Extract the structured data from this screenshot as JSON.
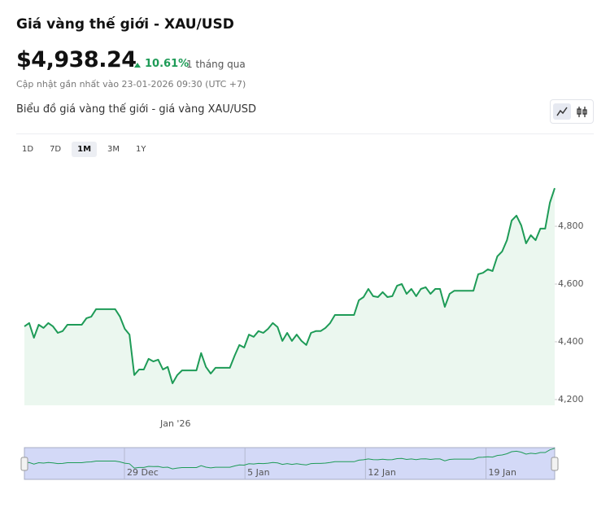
{
  "header": {
    "title": "Giá vàng thế giới - XAU/USD",
    "price": "$4,938.24",
    "change": "10.61%",
    "period": "1 tháng qua",
    "updated": "Cập nhật gần nhất vào 23-01-2026 09:30 (UTC +7)"
  },
  "chart_heading": "Biểu đồ giá vàng thế giới - giá vàng XAU/USD",
  "ranges": [
    "1D",
    "7D",
    "1M",
    "3M",
    "1Y"
  ],
  "active_range": "1M",
  "chart_data": {
    "type": "line",
    "color": "#1e9b57",
    "area_color": "#ebf7ef",
    "categories": [
      null,
      null,
      null,
      null,
      null,
      null,
      null,
      null,
      null,
      null,
      null,
      null,
      null,
      null,
      null,
      null,
      null,
      null,
      null,
      null,
      null,
      null,
      null,
      null,
      null,
      null,
      null,
      null,
      null,
      null,
      null,
      null,
      null,
      null,
      "Jan '26",
      null,
      null,
      null,
      null,
      null,
      null,
      null,
      null,
      null,
      null,
      null,
      null,
      null,
      null,
      null,
      null,
      null,
      null,
      null,
      null,
      null,
      null,
      null,
      null,
      null,
      null,
      null,
      null,
      null,
      null,
      null,
      null,
      null,
      null,
      null,
      null,
      null,
      null,
      null,
      null,
      null,
      null,
      null,
      null,
      null,
      null,
      null,
      null,
      null,
      null,
      null,
      null,
      null,
      null,
      null,
      null,
      null,
      null,
      null,
      null,
      null,
      null,
      null,
      null,
      null,
      null,
      null,
      null,
      null,
      null,
      null,
      null,
      null,
      null,
      null,
      null,
      null
    ],
    "values": [
      4453,
      4465,
      4414,
      4459,
      4448,
      4465,
      4453,
      4431,
      4437,
      4459,
      4459,
      4459,
      4459,
      4482,
      4487,
      4513,
      4513,
      4513,
      4513,
      4513,
      4487,
      4445,
      4425,
      4285,
      4304,
      4304,
      4341,
      4332,
      4338,
      4304,
      4313,
      4256,
      4285,
      4301,
      4301,
      4301,
      4301,
      4361,
      4313,
      4290,
      4310,
      4310,
      4310,
      4310,
      4352,
      4389,
      4380,
      4425,
      4417,
      4437,
      4431,
      4445,
      4465,
      4451,
      4403,
      4431,
      4403,
      4425,
      4403,
      4389,
      4431,
      4437,
      4437,
      4448,
      4465,
      4493,
      4493,
      4493,
      4493,
      4493,
      4544,
      4555,
      4583,
      4558,
      4555,
      4572,
      4555,
      4558,
      4594,
      4600,
      4566,
      4583,
      4558,
      4583,
      4589,
      4566,
      4583,
      4583,
      4521,
      4566,
      4577,
      4577,
      4577,
      4577,
      4577,
      4634,
      4639,
      4651,
      4645,
      4696,
      4713,
      4752,
      4820,
      4837,
      4803,
      4741,
      4769,
      4752,
      4792,
      4792,
      4882,
      4932
    ],
    "ylim": [
      4180,
      5020
    ],
    "yticks": [
      {
        "value": 4200,
        "label": "4,200"
      },
      {
        "value": 4400,
        "label": "4,400"
      },
      {
        "value": 4600,
        "label": "4,600"
      },
      {
        "value": 4800,
        "label": "4,800"
      }
    ],
    "navigator": {
      "labels": [
        "29 Dec",
        "5 Jan",
        "12 Jan",
        "19 Jan"
      ]
    }
  }
}
